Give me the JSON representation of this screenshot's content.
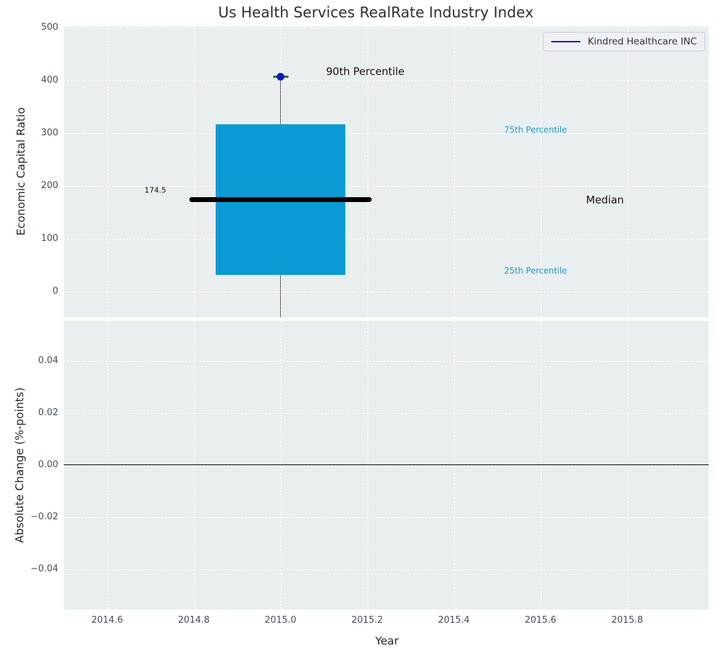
{
  "title": "Us Health Services RealRate Industry Index",
  "legend": {
    "label": "Kindred Healthcare INC"
  },
  "colors": {
    "figure_bg": "#ffffff",
    "plot_bg": "#e9eef0",
    "grid": "#ffffff",
    "box_fill": "#0a9bd4",
    "median_line": "#000000",
    "whisker": "#606060",
    "cap": "#008000",
    "marker": "#1414cf",
    "legend_line": "#1414cf",
    "tick_label": "#3e4e5e",
    "zero_line": "#000000"
  },
  "chart_data": [
    {
      "type": "boxplot",
      "subplot": "top",
      "title": "Us Health Services RealRate Industry Index",
      "ylabel": "Economic Capital Ratio",
      "ylim": [
        -48,
        503
      ],
      "yticks": [
        500,
        400,
        300,
        200,
        100,
        0
      ],
      "ytick_labels": [
        "500",
        "400",
        "300",
        "200",
        "100",
        "0"
      ],
      "xlim": [
        2014.5,
        2015.988
      ],
      "xticks": [
        2014.6,
        2014.8,
        2015.0,
        2015.2,
        2015.4,
        2015.6,
        2015.8
      ],
      "grid": true,
      "legend_position": "upper right",
      "series": [
        {
          "name": "Kindred Healthcare INC",
          "x": 2015.0,
          "p90": 408,
          "p75": 317,
          "median": 174.5,
          "p25": 32,
          "whisker_extends_below_axis": true,
          "box_x_range": [
            2014.85,
            2015.15
          ],
          "median_x_range": [
            2014.79,
            2015.21
          ]
        }
      ],
      "annotations": [
        {
          "id": "p90-text",
          "text": "90th Percentile",
          "x": 2015.105,
          "y": 418,
          "size": 15,
          "color": "#111111"
        },
        {
          "id": "median-value-text",
          "text": "174.5",
          "x": 2014.686,
          "y": 192,
          "size": 11,
          "color": "#111111"
        },
        {
          "id": "p75-text",
          "text": "75th Percentile",
          "x": 2015.516,
          "y": 307,
          "size": 12,
          "color": "#1b9bce"
        },
        {
          "id": "median-text",
          "text": "Median",
          "x": 2015.705,
          "y": 174.5,
          "size": 15,
          "color": "#111111"
        },
        {
          "id": "p25-text",
          "text": "25th Percentile",
          "x": 2015.516,
          "y": 40,
          "size": 12,
          "color": "#1b9bce"
        }
      ]
    },
    {
      "type": "line",
      "subplot": "bottom",
      "xlabel": "Year",
      "ylabel": "Absolute Change (%-points)",
      "ylim": [
        -0.0555,
        0.0555
      ],
      "yticks": [
        0.04,
        0.02,
        0.0,
        -0.02,
        -0.04
      ],
      "ytick_labels": [
        "0.04",
        "0.02",
        "0.00",
        "−0.02",
        "−0.04"
      ],
      "xticks": [
        2014.6,
        2014.8,
        2015.0,
        2015.2,
        2015.4,
        2015.6,
        2015.8
      ],
      "xtick_labels": [
        "2014.6",
        "2014.8",
        "2015.0",
        "2015.2",
        "2015.4",
        "2015.6",
        "2015.8"
      ],
      "zero_line": 0.0,
      "series": []
    }
  ]
}
